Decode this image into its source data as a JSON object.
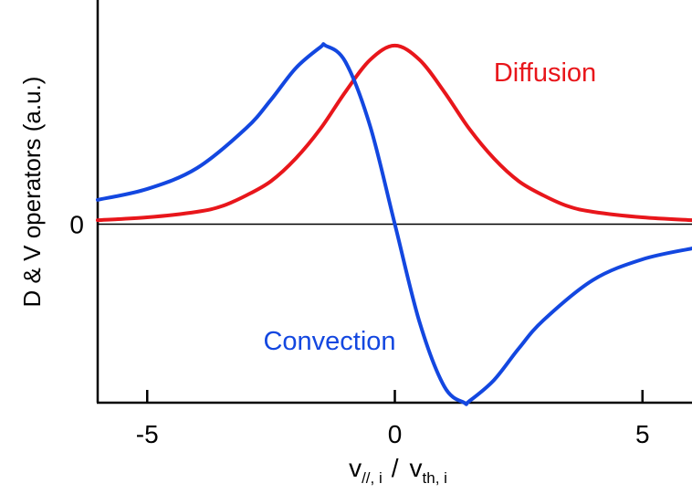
{
  "chart_data": {
    "type": "line",
    "title": "",
    "xlabel": {
      "base_left": "v",
      "sub_left": "//, i",
      "separator": "/",
      "base_right": "v",
      "sub_right": "th, i"
    },
    "ylabel": "D & V operators  (a.u.)",
    "xlim": [
      -6,
      6
    ],
    "ylim": [
      -1.0,
      1.24
    ],
    "x_ticks": [
      {
        "value": -5,
        "label": "-5"
      },
      {
        "value": 0,
        "label": "0"
      },
      {
        "value": 5,
        "label": "5"
      }
    ],
    "y_ticks": [
      {
        "value": 0,
        "label": "0"
      }
    ],
    "zero_line": true,
    "grid": false,
    "legend": "inline labels",
    "series": [
      {
        "name": "Diffusion",
        "color": "#e8161b",
        "x": [
          -6,
          -5,
          -4,
          -3.5,
          -3,
          -2.5,
          -2,
          -1.5,
          -1,
          -0.5,
          0,
          0.5,
          1,
          1.5,
          2,
          2.5,
          3,
          3.5,
          4,
          5,
          6
        ],
        "y": [
          0.022,
          0.038,
          0.069,
          0.1,
          0.161,
          0.241,
          0.368,
          0.535,
          0.74,
          0.92,
          1.0,
          0.92,
          0.74,
          0.535,
          0.368,
          0.241,
          0.161,
          0.1,
          0.069,
          0.038,
          0.022
        ]
      },
      {
        "name": "Convection",
        "color": "#1347e0",
        "x": [
          -6,
          -5,
          -4,
          -3,
          -2.5,
          -2,
          -1.5,
          -1.4,
          -1,
          -0.5,
          0,
          0.5,
          1,
          1.4,
          1.5,
          2,
          2.5,
          3,
          4,
          5,
          6
        ],
        "y": [
          0.136,
          0.197,
          0.313,
          0.538,
          0.697,
          0.874,
          0.992,
          1.0,
          0.91,
          0.55,
          0.0,
          -0.55,
          -0.91,
          -1.0,
          -0.992,
          -0.874,
          -0.697,
          -0.538,
          -0.313,
          -0.197,
          -0.136
        ]
      }
    ]
  }
}
